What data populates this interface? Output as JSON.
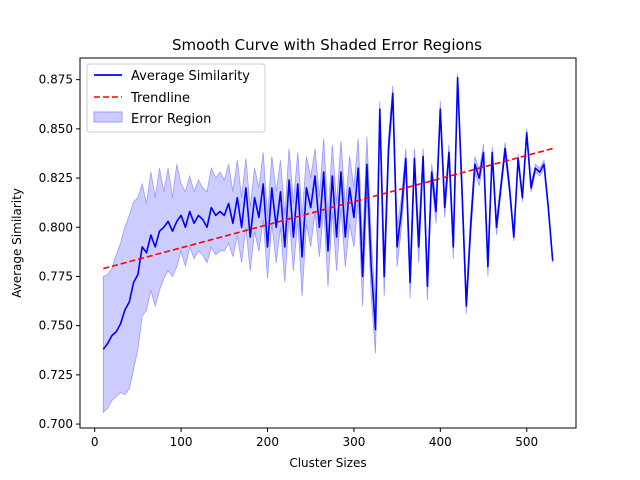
{
  "chart_data": {
    "type": "line",
    "title": "Smooth Curve with Shaded Error Regions",
    "xlabel": "Cluster Sizes",
    "ylabel": "Average Similarity",
    "xlim": [
      -17,
      557
    ],
    "ylim": [
      0.698,
      0.886
    ],
    "xticks": [
      0,
      100,
      200,
      300,
      400,
      500
    ],
    "xtick_labels": [
      "0",
      "100",
      "200",
      "300",
      "400",
      "500"
    ],
    "yticks": [
      0.7,
      0.725,
      0.75,
      0.775,
      0.8,
      0.825,
      0.85,
      0.875
    ],
    "ytick_labels": [
      "0.700",
      "0.725",
      "0.750",
      "0.775",
      "0.800",
      "0.825",
      "0.850",
      "0.875"
    ],
    "grid": false,
    "legend_position": "upper-left",
    "legend": [
      "Average Similarity",
      "Trendline",
      "Error Region"
    ],
    "colors": {
      "average": "#0000ff",
      "trend": "#ff0000",
      "error": "#9999ff"
    },
    "series": [
      {
        "name": "Average Similarity",
        "x": [
          10,
          15,
          20,
          25,
          30,
          35,
          40,
          45,
          50,
          55,
          60,
          65,
          70,
          75,
          80,
          85,
          90,
          95,
          100,
          105,
          110,
          115,
          120,
          125,
          130,
          135,
          140,
          145,
          150,
          155,
          160,
          165,
          170,
          175,
          180,
          185,
          190,
          195,
          200,
          205,
          210,
          215,
          220,
          225,
          230,
          235,
          240,
          245,
          250,
          255,
          260,
          265,
          270,
          275,
          280,
          285,
          290,
          295,
          300,
          305,
          310,
          315,
          320,
          325,
          330,
          335,
          340,
          345,
          350,
          355,
          360,
          365,
          370,
          375,
          380,
          385,
          390,
          395,
          400,
          405,
          410,
          415,
          420,
          425,
          430,
          435,
          440,
          445,
          450,
          455,
          460,
          465,
          470,
          475,
          480,
          485,
          490,
          495,
          500,
          505,
          510,
          515,
          520,
          525,
          530
        ],
        "y": [
          0.738,
          0.741,
          0.745,
          0.747,
          0.751,
          0.758,
          0.762,
          0.772,
          0.776,
          0.79,
          0.787,
          0.796,
          0.79,
          0.798,
          0.8,
          0.803,
          0.798,
          0.803,
          0.806,
          0.8,
          0.808,
          0.802,
          0.806,
          0.804,
          0.8,
          0.81,
          0.806,
          0.808,
          0.806,
          0.812,
          0.802,
          0.815,
          0.8,
          0.82,
          0.795,
          0.815,
          0.805,
          0.822,
          0.79,
          0.82,
          0.8,
          0.818,
          0.79,
          0.824,
          0.795,
          0.822,
          0.785,
          0.82,
          0.81,
          0.826,
          0.8,
          0.828,
          0.788,
          0.826,
          0.795,
          0.828,
          0.795,
          0.82,
          0.805,
          0.83,
          0.775,
          0.832,
          0.78,
          0.748,
          0.86,
          0.775,
          0.84,
          0.868,
          0.79,
          0.808,
          0.835,
          0.772,
          0.835,
          0.79,
          0.836,
          0.77,
          0.828,
          0.808,
          0.86,
          0.81,
          0.838,
          0.79,
          0.876,
          0.82,
          0.76,
          0.8,
          0.832,
          0.825,
          0.838,
          0.78,
          0.838,
          0.8,
          0.82,
          0.84,
          0.82,
          0.795,
          0.835,
          0.815,
          0.848,
          0.82,
          0.83,
          0.828,
          0.832,
          0.81,
          0.783
        ],
        "upper": [
          0.775,
          0.776,
          0.779,
          0.786,
          0.792,
          0.8,
          0.806,
          0.813,
          0.815,
          0.822,
          0.812,
          0.828,
          0.815,
          0.83,
          0.818,
          0.83,
          0.815,
          0.832,
          0.822,
          0.818,
          0.826,
          0.818,
          0.824,
          0.82,
          0.818,
          0.83,
          0.825,
          0.828,
          0.824,
          0.832,
          0.818,
          0.834,
          0.815,
          0.835,
          0.81,
          0.83,
          0.82,
          0.838,
          0.805,
          0.836,
          0.818,
          0.834,
          0.806,
          0.84,
          0.812,
          0.838,
          0.805,
          0.836,
          0.825,
          0.84,
          0.815,
          0.845,
          0.805,
          0.842,
          0.812,
          0.844,
          0.81,
          0.836,
          0.82,
          0.845,
          0.79,
          0.846,
          0.795,
          0.76,
          0.864,
          0.785,
          0.845,
          0.872,
          0.8,
          0.815,
          0.84,
          0.78,
          0.84,
          0.798,
          0.84,
          0.777,
          0.832,
          0.814,
          0.864,
          0.815,
          0.842,
          0.796,
          0.878,
          0.826,
          0.764,
          0.806,
          0.836,
          0.829,
          0.842,
          0.785,
          0.841,
          0.804,
          0.823,
          0.843,
          0.823,
          0.797,
          0.837,
          0.817,
          0.85,
          0.822,
          0.832,
          0.83,
          0.834,
          0.812,
          0.784
        ],
        "lower": [
          0.706,
          0.708,
          0.712,
          0.714,
          0.716,
          0.715,
          0.718,
          0.728,
          0.738,
          0.755,
          0.758,
          0.768,
          0.76,
          0.768,
          0.774,
          0.778,
          0.775,
          0.78,
          0.788,
          0.78,
          0.79,
          0.784,
          0.788,
          0.786,
          0.782,
          0.79,
          0.786,
          0.788,
          0.788,
          0.792,
          0.785,
          0.796,
          0.782,
          0.8,
          0.778,
          0.798,
          0.788,
          0.804,
          0.774,
          0.802,
          0.782,
          0.8,
          0.772,
          0.806,
          0.778,
          0.804,
          0.765,
          0.802,
          0.79,
          0.808,
          0.785,
          0.81,
          0.77,
          0.808,
          0.778,
          0.81,
          0.78,
          0.802,
          0.79,
          0.814,
          0.76,
          0.818,
          0.765,
          0.736,
          0.856,
          0.765,
          0.834,
          0.864,
          0.78,
          0.8,
          0.83,
          0.764,
          0.83,
          0.782,
          0.832,
          0.763,
          0.824,
          0.802,
          0.856,
          0.805,
          0.834,
          0.784,
          0.874,
          0.814,
          0.756,
          0.794,
          0.828,
          0.821,
          0.834,
          0.775,
          0.835,
          0.796,
          0.817,
          0.837,
          0.817,
          0.793,
          0.833,
          0.813,
          0.846,
          0.818,
          0.828,
          0.826,
          0.83,
          0.808,
          0.782
        ]
      },
      {
        "name": "Trendline",
        "x": [
          10,
          530
        ],
        "y": [
          0.779,
          0.84
        ]
      }
    ]
  }
}
